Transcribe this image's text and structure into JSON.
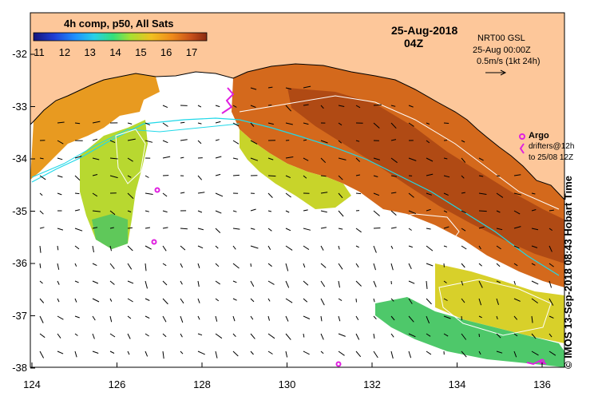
{
  "product": {
    "composite_label": "4h comp, p50, All Sats",
    "date": "25-Aug-2018",
    "time": "04Z"
  },
  "current_info": {
    "line1": "NRT00 GSL",
    "line2": "25-Aug 00:00Z",
    "scale": "0.5m/s (1kt 24h)"
  },
  "colorbar": {
    "ticks": [
      "11",
      "12",
      "13",
      "14",
      "15",
      "16",
      "17"
    ],
    "colors": [
      "#15157a",
      "#1f3fd6",
      "#1e90ff",
      "#27d0e8",
      "#35e07a",
      "#a8e030",
      "#f0c020",
      "#ef8a1a",
      "#c8501a",
      "#8a2a10"
    ]
  },
  "legend": {
    "argo_label": "Argo",
    "drifters_line1": "drifters@12h",
    "drifters_line2": "to 25/08 12Z"
  },
  "axes": {
    "lat_ticks": [
      "-32",
      "-33",
      "-34",
      "-35",
      "-36",
      "-37",
      "-38"
    ],
    "lon_ticks": [
      "124",
      "126",
      "128",
      "130",
      "132",
      "134",
      "136"
    ]
  },
  "credit": "© IMOS 13-Sep-2018 08:43 Hobart Time",
  "colors": {
    "land": "#fdc79a",
    "ocean_nodata": "#ffffff",
    "argo": "#e020e0"
  }
}
